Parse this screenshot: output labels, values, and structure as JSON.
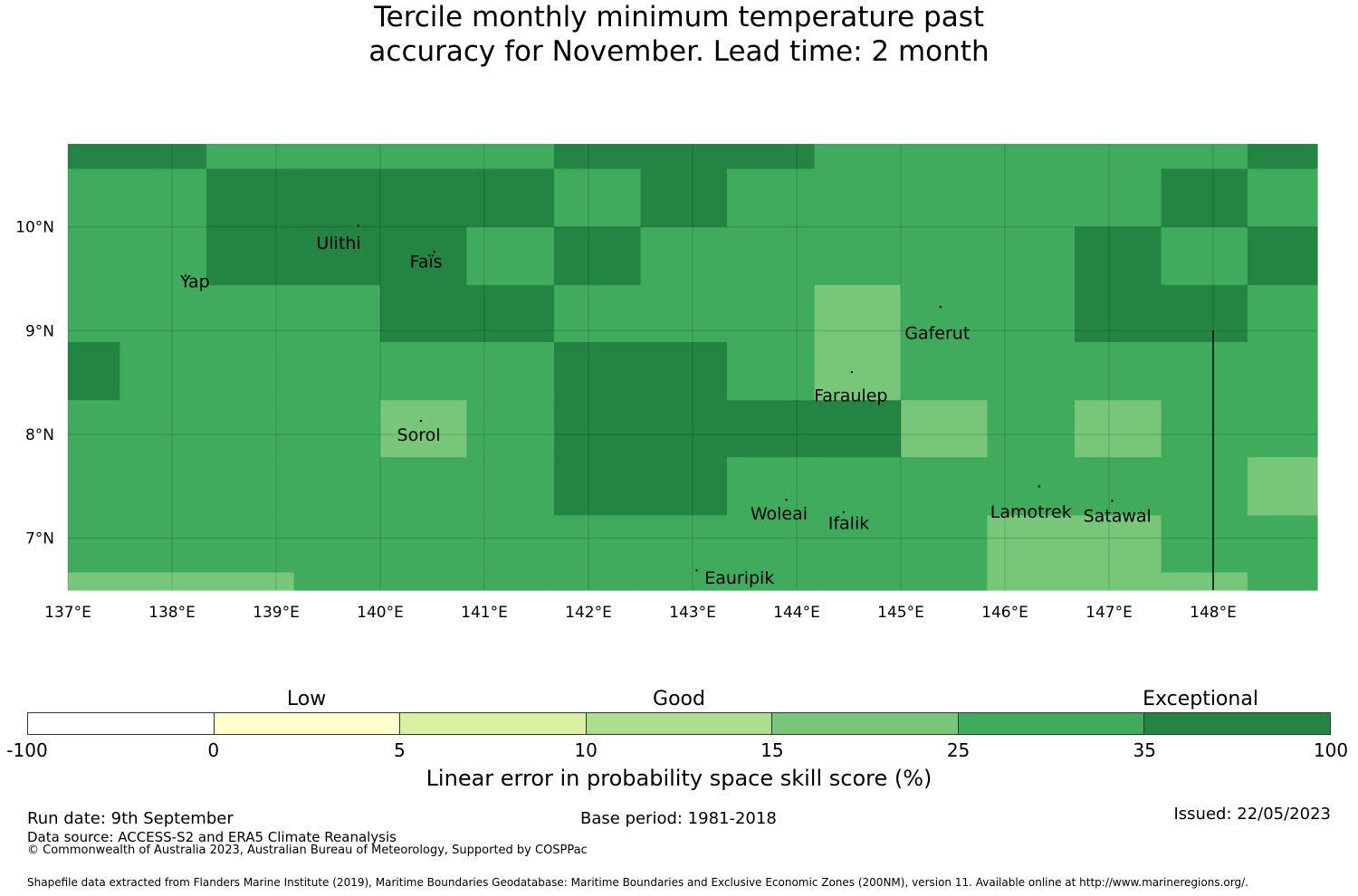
{
  "title": {
    "line1": "Tercile monthly minimum temperature past",
    "line2": "accuracy for November. Lead time: 2 month"
  },
  "map": {
    "lon_range": [
      137.0,
      149.0
    ],
    "lat_range": [
      6.5,
      10.8
    ],
    "x_ticks": [
      {
        "lon": 137,
        "label": "137°E"
      },
      {
        "lon": 138,
        "label": "138°E"
      },
      {
        "lon": 139,
        "label": "139°E"
      },
      {
        "lon": 140,
        "label": "140°E"
      },
      {
        "lon": 141,
        "label": "141°E"
      },
      {
        "lon": 142,
        "label": "142°E"
      },
      {
        "lon": 143,
        "label": "143°E"
      },
      {
        "lon": 144,
        "label": "144°E"
      },
      {
        "lon": 145,
        "label": "145°E"
      },
      {
        "lon": 146,
        "label": "146°E"
      },
      {
        "lon": 147,
        "label": "147°E"
      },
      {
        "lon": 148,
        "label": "148°E"
      }
    ],
    "y_ticks": [
      {
        "lat": 10,
        "label": "10°N"
      },
      {
        "lat": 9,
        "label": "9°N"
      },
      {
        "lat": 8,
        "label": "8°N"
      },
      {
        "lat": 7,
        "label": "7°N"
      }
    ],
    "palette": {
      "M": "#41ab5d",
      "D": "#238443",
      "L": "#78c679"
    },
    "grid": {
      "lon_edges": [
        137.0,
        137.5,
        138.33,
        139.17,
        140.0,
        140.83,
        141.67,
        142.5,
        143.33,
        144.17,
        145.0,
        145.83,
        146.67,
        147.5,
        148.33,
        149.0
      ],
      "lat_edges": [
        10.8,
        10.56,
        10.0,
        9.44,
        8.89,
        8.33,
        7.78,
        7.22,
        6.67,
        6.5
      ],
      "rows": [
        "DDMMMMDDDMMMMMD",
        "MMDDDDMDMMMMMDM",
        "MMDDDMDMMMMMDMD",
        "MMMMDDMMMLMMDDM",
        "DMMMMMDDMLMMMMM",
        "MMMMLMDDDDLMLMM",
        "MMMMMMDDMMMMMML",
        "MMMMMMMMMMMLLMM",
        "LLLMMMMMMMMLLLM"
      ]
    },
    "islands": [
      {
        "name": "Yap",
        "lon": 138.13,
        "lat": 9.53,
        "label_lon": 138.22,
        "label_lat": 9.48
      },
      {
        "name": "Ulithi",
        "lon": 139.79,
        "lat": 10.01,
        "label_lon": 139.6,
        "label_lat": 9.85
      },
      {
        "name": "Faïs",
        "lon": 140.52,
        "lat": 9.76,
        "label_lon": 140.44,
        "label_lat": 9.67
      },
      {
        "name": "Gaferut",
        "lon": 145.38,
        "lat": 9.23,
        "label_lon": 145.35,
        "label_lat": 8.98
      },
      {
        "name": "Faraulep",
        "lon": 144.53,
        "lat": 8.6,
        "label_lon": 144.52,
        "label_lat": 8.38
      },
      {
        "name": "Sorol",
        "lon": 140.39,
        "lat": 8.13,
        "label_lon": 140.37,
        "label_lat": 8.0
      },
      {
        "name": "Woleai",
        "lon": 143.9,
        "lat": 7.37,
        "label_lon": 143.83,
        "label_lat": 7.24
      },
      {
        "name": "Ifalik",
        "lon": 144.45,
        "lat": 7.25,
        "label_lon": 144.5,
        "label_lat": 7.15
      },
      {
        "name": "Lamotrek",
        "lon": 146.33,
        "lat": 7.5,
        "label_lon": 146.25,
        "label_lat": 7.26
      },
      {
        "name": "Satawal",
        "lon": 147.03,
        "lat": 7.36,
        "label_lon": 147.08,
        "label_lat": 7.22
      },
      {
        "name": "Eauripik",
        "lon": 143.04,
        "lat": 6.69,
        "label_lon": 143.45,
        "label_lat": 6.62
      }
    ],
    "boundary_line": {
      "lon": 148.0,
      "lat_top": 9.0,
      "lat_bottom": 6.5
    }
  },
  "legend": {
    "headings": [
      {
        "label": "Low",
        "value_index": 1.5
      },
      {
        "label": "Good",
        "value_index": 3.5
      },
      {
        "label": "Exceptional",
        "value_index": 6.3
      }
    ],
    "bins": [
      "#ffffff",
      "#ffffcc",
      "#d9f0a3",
      "#addd8e",
      "#78c679",
      "#41ab5d",
      "#238443"
    ],
    "ticks": [
      "-100",
      "0",
      "5",
      "10",
      "15",
      "25",
      "35",
      "100"
    ],
    "label": "Linear error in probability space skill score (%)"
  },
  "footer": {
    "run_date": "Run date: 9th September",
    "base_period": "Base period: 1981-2018",
    "issued": "Issued: 22/05/2023",
    "data_source": "Data source: ACCESS-S2 and ERA5 Climate Reanalysis",
    "copyright": "© Commonwealth of Australia 2023, Australian Bureau of Meteorology, Supported by COSPPac",
    "shapefile": "Shapefile data extracted from Flanders Marine Institute (2019), Maritime Boundaries Geodatabase: Maritime Boundaries and Exclusive Economic Zones (200NM), version 11. Available online at http://www.marineregions.org/."
  }
}
